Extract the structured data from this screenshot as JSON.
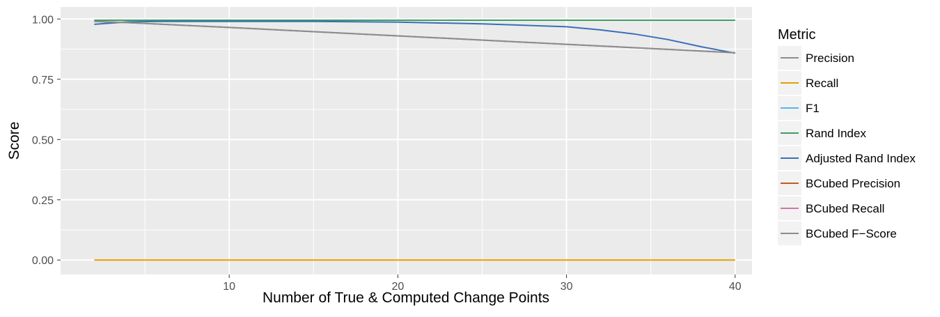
{
  "chart_data": {
    "type": "line",
    "title": "",
    "xlabel": "Number of True & Computed Change Points",
    "ylabel": "Score",
    "xlim": [
      0,
      41
    ],
    "ylim": [
      -0.06,
      1.05
    ],
    "x_ticks": [
      10,
      20,
      30,
      40
    ],
    "y_ticks": [
      0.0,
      0.25,
      0.5,
      0.75,
      1.0
    ],
    "y_tick_labels": [
      "0.00",
      "0.25",
      "0.50",
      "0.75",
      "1.00"
    ],
    "x_minor_ticks": [
      5,
      15,
      25,
      35
    ],
    "y_minor_ticks": [
      0.125,
      0.375,
      0.625,
      0.875
    ],
    "grid": true,
    "legend": {
      "title": "Metric",
      "position": "right"
    },
    "series": [
      {
        "name": "Precision",
        "color": "#8c8c8c",
        "x": [
          2,
          4,
          10,
          20,
          30,
          40
        ],
        "y": [
          0.99,
          0.985,
          0.965,
          0.93,
          0.895,
          0.86
        ]
      },
      {
        "name": "Recall",
        "color": "#e69f00",
        "x": [
          2,
          10,
          20,
          30,
          40
        ],
        "y": [
          0.0,
          0.0,
          0.0,
          0.0,
          0.0
        ]
      },
      {
        "name": "F1",
        "color": "#56b4e9",
        "x": [],
        "y": []
      },
      {
        "name": "Rand Index",
        "color": "#3f9c64",
        "x": [
          2,
          10,
          20,
          30,
          40
        ],
        "y": [
          0.995,
          0.995,
          0.995,
          0.995,
          0.995
        ]
      },
      {
        "name": "Adjusted Rand Index",
        "color": "#3a6fb8",
        "x": [
          2,
          4,
          6,
          10,
          15,
          20,
          25,
          30,
          32,
          34,
          36,
          38,
          40
        ],
        "y": [
          0.978,
          0.988,
          0.99,
          0.99,
          0.99,
          0.987,
          0.98,
          0.968,
          0.955,
          0.938,
          0.915,
          0.885,
          0.858
        ]
      },
      {
        "name": "BCubed Precision",
        "color": "#c45a1a",
        "x": [],
        "y": []
      },
      {
        "name": "BCubed Recall",
        "color": "#cc79a7",
        "x": [],
        "y": []
      },
      {
        "name": "BCubed F-Score",
        "color": "#8c8c8c",
        "x": [
          2,
          4,
          10,
          20,
          30,
          40
        ],
        "y": [
          0.99,
          0.985,
          0.965,
          0.93,
          0.895,
          0.86
        ]
      }
    ]
  },
  "legend_labels": [
    "Precision",
    "Recall",
    "F1",
    "Rand Index",
    "Adjusted Rand Index",
    "BCubed Precision",
    "BCubed Recall",
    "BCubed F−Score"
  ],
  "colors": {
    "panel_bg": "#ebebeb",
    "grid": "#ffffff",
    "axis_text": "#4d4d4d",
    "axis_title": "#000000",
    "legend_key_bg": "#f2f2f2"
  }
}
